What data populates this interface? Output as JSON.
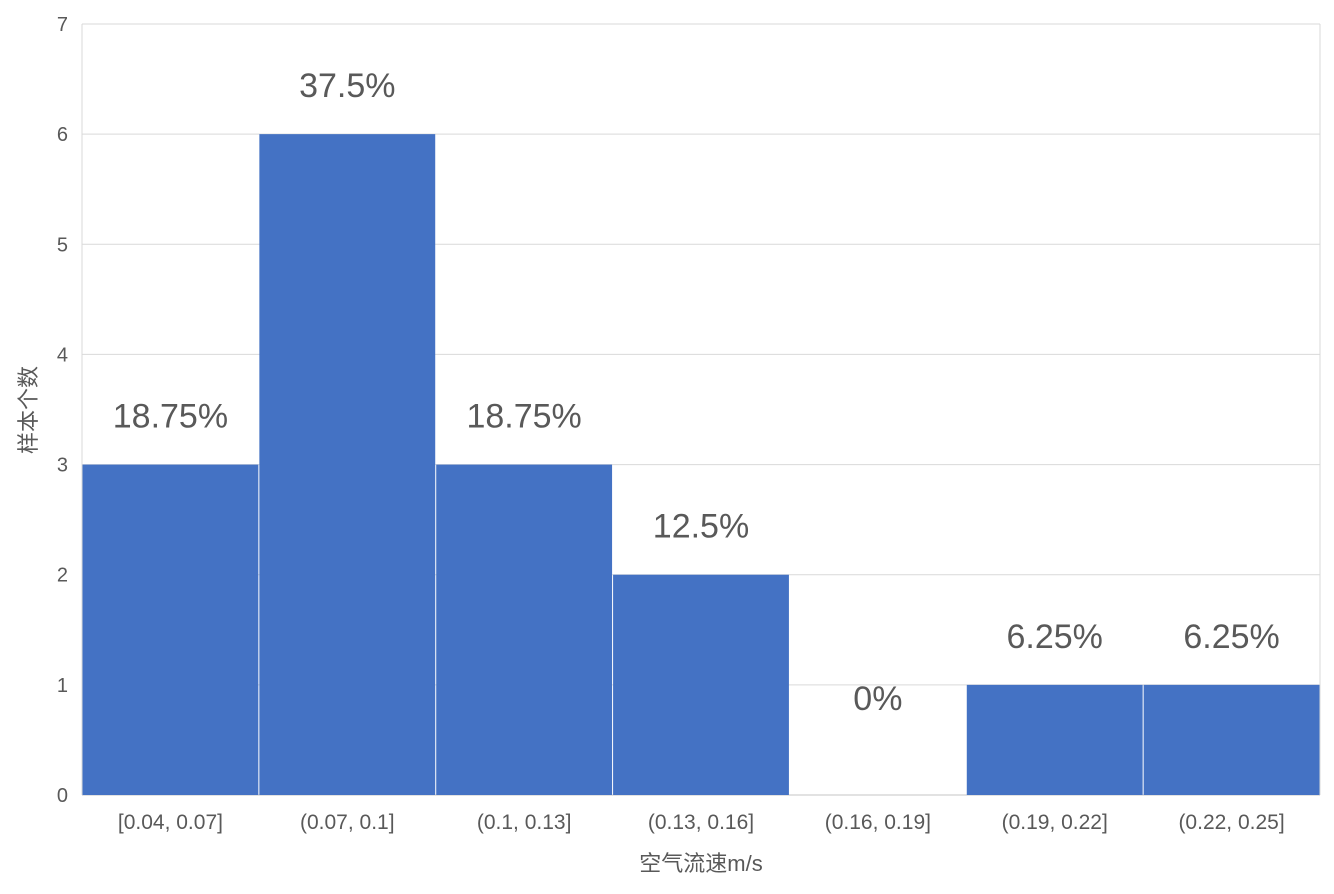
{
  "chart_data": {
    "type": "bar",
    "title": "",
    "xlabel": "空气流速m/s",
    "ylabel": "样本个数",
    "ylim": [
      0,
      7
    ],
    "yticks": [
      "0",
      "1",
      "2",
      "3",
      "4",
      "5",
      "6",
      "7"
    ],
    "grid": true,
    "categories": [
      "[0.04, 0.07]",
      "(0.07, 0.1]",
      "(0.1, 0.13]",
      "(0.13, 0.16]",
      "(0.16, 0.19]",
      "(0.19, 0.22]",
      "(0.22, 0.25]"
    ],
    "values": [
      3,
      6,
      3,
      2,
      0,
      1,
      1
    ],
    "data_labels": [
      "18.75%",
      "37.5%",
      "18.75%",
      "12.5%",
      "0%",
      "6.25%",
      "6.25%"
    ],
    "bar_color": "#4472C4",
    "grid_color": "#D9D9D9"
  }
}
